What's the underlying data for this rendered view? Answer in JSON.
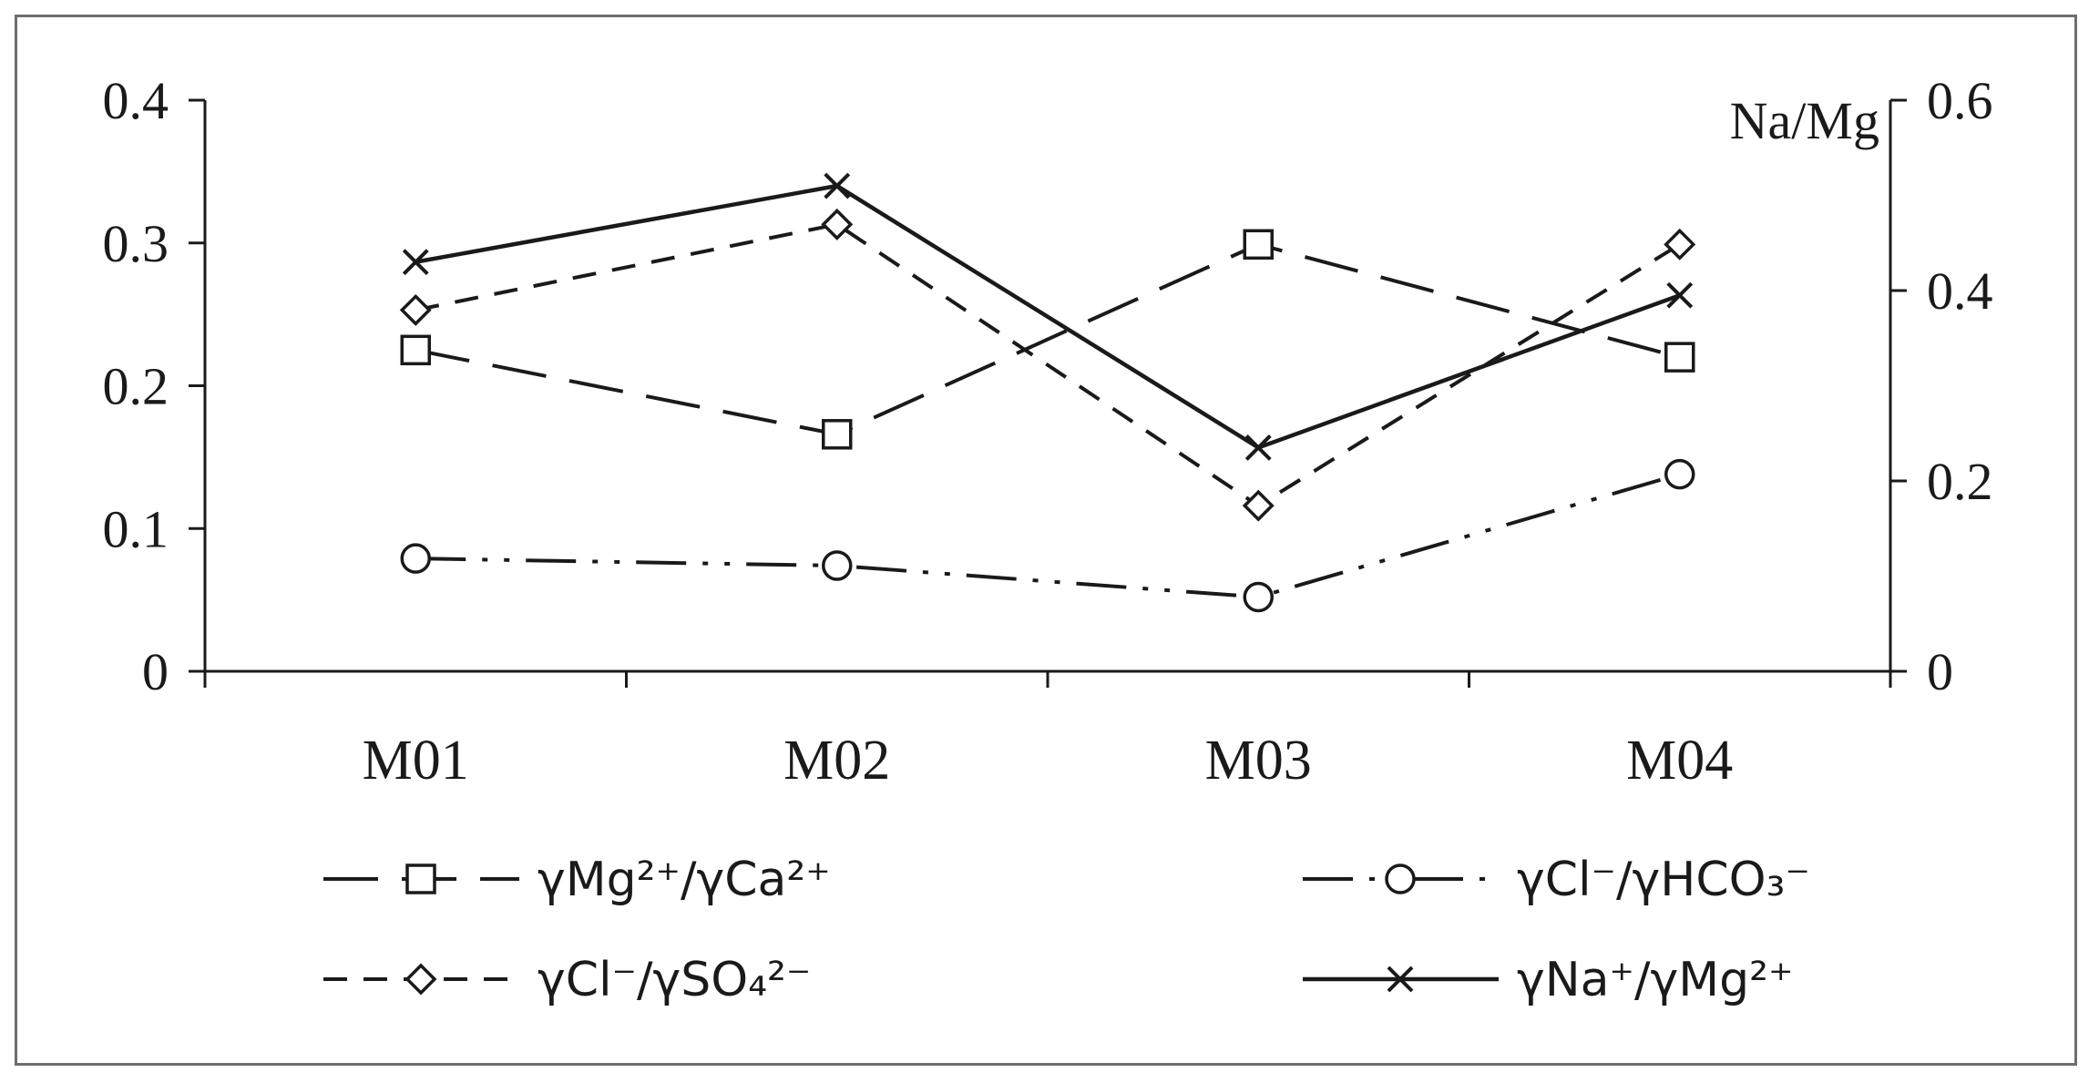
{
  "chart_data": {
    "type": "line",
    "categories": [
      "M01",
      "M02",
      "M03",
      "M04"
    ],
    "y_left": {
      "ylim": [
        0,
        0.4
      ],
      "ticks": [
        "0",
        "0.1",
        "0.2",
        "0.3",
        "0.4"
      ]
    },
    "y_right": {
      "label": "Na/Mg",
      "ylim": [
        0,
        0.6
      ],
      "ticks": [
        "0",
        "0.2",
        "0.4",
        "0.6"
      ]
    },
    "grid": false,
    "legend_position": "bottom",
    "series": [
      {
        "name": "γMg²⁺/γCa²⁺",
        "axis": "left",
        "marker": "square",
        "dash": "long-dash",
        "values": [
          0.225,
          0.166,
          0.299,
          0.22
        ]
      },
      {
        "name": "γCl⁻/γHCO₃⁻",
        "axis": "left",
        "marker": "circle",
        "dash": "dash-dot-dot",
        "values": [
          0.079,
          0.074,
          0.052,
          0.138
        ]
      },
      {
        "name": "γCl⁻/γSO₄²⁻",
        "axis": "left",
        "marker": "diamond",
        "dash": "short-dash",
        "values": [
          0.253,
          0.313,
          0.116,
          0.299
        ]
      },
      {
        "name": "γNa⁺/γMg²⁺",
        "axis": "right",
        "marker": "x",
        "dash": "solid",
        "values": [
          0.43,
          0.51,
          0.235,
          0.395
        ]
      }
    ]
  }
}
